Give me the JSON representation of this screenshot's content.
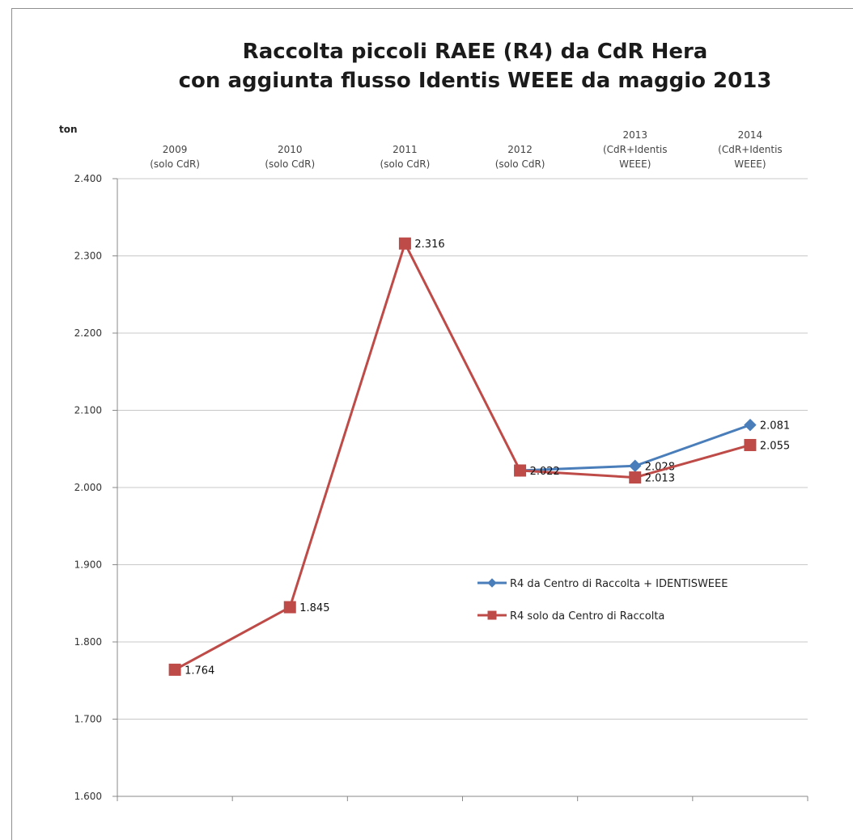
{
  "chart_data": {
    "type": "line",
    "title": "Raccolta piccoli RAEE (R4) da CdR Hera\ncon aggiunta flusso Identis WEEE da maggio 2013",
    "ylabel": "ton",
    "xlabel": "",
    "categories": [
      "2009\n(solo CdR)",
      "2010\n(solo CdR)",
      "2011\n(solo CdR)",
      "2012\n(solo CdR)",
      "2013\n(CdR+Identis\nWEEE)",
      "2014\n(CdR+Identis\nWEEE)"
    ],
    "ylim": [
      1600,
      2400
    ],
    "yticks": [
      1600,
      1700,
      1800,
      1900,
      2000,
      2100,
      2200,
      2300,
      2400
    ],
    "ytick_labels": [
      "1.600",
      "1.700",
      "1.800",
      "1.900",
      "2.000",
      "2.100",
      "2.200",
      "2.300",
      "2.400"
    ],
    "grid": true,
    "legend_position": "right",
    "series": [
      {
        "name": "R4 da Centro di Raccolta + IDENTISWEEE",
        "color": "#4a7ebb",
        "marker": "diamond",
        "values": [
          null,
          null,
          null,
          2022,
          2028,
          2081
        ],
        "labels": [
          null,
          null,
          null,
          null,
          "2.028",
          "2.081"
        ]
      },
      {
        "name": "R4 solo da Centro di Raccolta",
        "color": "#be4b48",
        "marker": "square",
        "values": [
          1764,
          1845,
          2316,
          2022,
          2013,
          2055
        ],
        "labels": [
          "1.764",
          "1.845",
          "2.316",
          "2.022",
          "2.013",
          "2.055"
        ]
      }
    ]
  }
}
